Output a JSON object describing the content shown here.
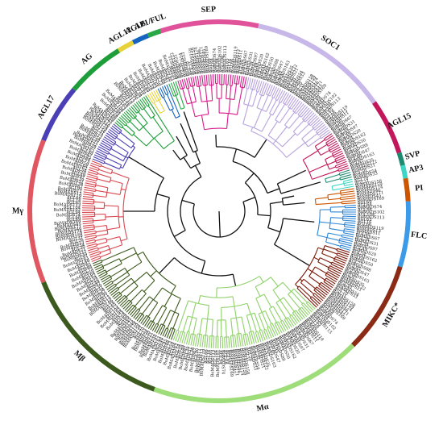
{
  "figure": {
    "kind": "circular phylogenetic tree of MADS-box genes"
  },
  "clades": [
    {
      "id": "sep",
      "label": "SEP",
      "color": "#d81b8a",
      "start": -18,
      "end": 12,
      "ring_color": "#e0539a"
    },
    {
      "id": "soc1",
      "label": "SOC1",
      "color": "#b7a3dd",
      "start": 12,
      "end": 55,
      "ring_color": "#c8b8ea"
    },
    {
      "id": "agl15",
      "label": "AGL15",
      "color": "#c2185b",
      "start": 55,
      "end": 72,
      "ring_color": "#c2185b"
    },
    {
      "id": "svp",
      "label": "SVP",
      "color": "#1f8a70",
      "start": 72,
      "end": 76,
      "ring_color": "#1f8a70"
    },
    {
      "id": "ap3",
      "label": "AP3",
      "color": "#3dd6c6",
      "start": 76,
      "end": 80,
      "ring_color": "#3dd6c6"
    },
    {
      "id": "pi",
      "label": "PI",
      "color": "#cc5500",
      "start": 80,
      "end": 87,
      "ring_color": "#cc5500"
    },
    {
      "id": "flc",
      "label": "FLC",
      "color": "#2f86d6",
      "start": 87,
      "end": 107,
      "ring_color": "#3b9be8"
    },
    {
      "id": "mikc",
      "label": "MIKC*",
      "color": "#7a1a0a",
      "start": 107,
      "end": 135,
      "ring_color": "#8b2a15"
    },
    {
      "id": "ma",
      "label": "Mα",
      "color": "#8fd16a",
      "start": 135,
      "end": 200,
      "ring_color": "#9fdc7a"
    },
    {
      "id": "mb",
      "label": "Mβ",
      "color": "#3d5a1e",
      "start": 200,
      "end": 248,
      "ring_color": "#3d5a1e"
    },
    {
      "id": "mg",
      "label": "Mγ",
      "color": "#d9474f",
      "start": 248,
      "end": 292,
      "ring_color": "#e05661"
    },
    {
      "id": "agl17",
      "label": "AGL17",
      "color": "#4b3fb5",
      "start": 292,
      "end": 310,
      "ring_color": "#4b3fb5"
    },
    {
      "id": "ag",
      "label": "AG",
      "color": "#1e9e3a",
      "start": 310,
      "end": 328,
      "ring_color": "#1e9e3a"
    },
    {
      "id": "agl12",
      "label": "AGL12",
      "color": "#e8d23a",
      "start": 328,
      "end": 333,
      "ring_color": "#e8d23a"
    },
    {
      "id": "agl6",
      "label": "AGL6",
      "color": "#1565c0",
      "start": 333,
      "end": 338,
      "ring_color": "#1565c0"
    },
    {
      "id": "ap1",
      "label": "AP1/FUL",
      "color": "#28a745",
      "start": 338,
      "end": 342,
      "ring_color": "#28a745"
    }
  ],
  "tip_label_samples": [
    "BoMADS35",
    "BoMADS122",
    "BoMADS21",
    "AGL30",
    "BoMADS54",
    "BoMADS33",
    "AGL70",
    "AGL31",
    "BoMADS158",
    "BoMADS159",
    "BoMADS174",
    "BoMADS46",
    "BoMADS171",
    "BoMADS45",
    "BoMADS169",
    "AGL69",
    "AGL68",
    "BoMADS74",
    "AGL94",
    "BoMADS102",
    "AGL104",
    "BoMADS113",
    "AGL65",
    "AGL16",
    "AGL66",
    "BoMADS119",
    "BoMADS13",
    "BoMADS11",
    "AGL90",
    "BoMADS67",
    "AGL38",
    "BoMADS31",
    "AGL39",
    "BoMADS97",
    "AGL49",
    "BoMADS20",
    "AGL54",
    "BoMADS162",
    "AGL64",
    "BoMADS50",
    "AGL73",
    "BoMADS88",
    "AGL95",
    "BoMADS47",
    "AGL40",
    "BoMADS163",
    "AGL97"
  ]
}
